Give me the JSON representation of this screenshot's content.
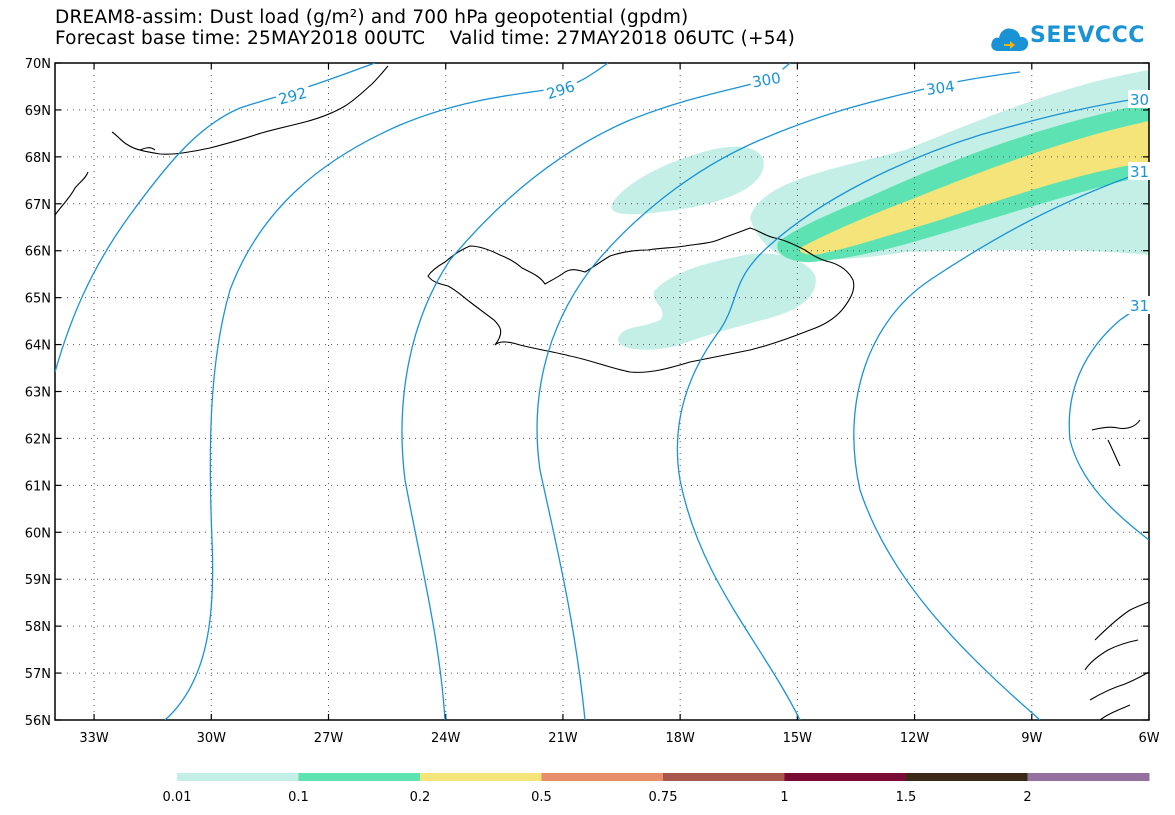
{
  "title": {
    "line1": "DREAM8-assim: Dust load (g/m²) and 700 hPa geopotential (gpdm)",
    "line2": "Forecast base time: 25MAY2018 00UTC    Valid time: 27MAY2018 06UTC (+54)"
  },
  "logo": {
    "text": "SEEVCCC",
    "icon": "cloud-icon"
  },
  "axes": {
    "lat_labels": [
      "70N",
      "69N",
      "68N",
      "67N",
      "66N",
      "65N",
      "64N",
      "63N",
      "62N",
      "61N",
      "60N",
      "59N",
      "58N",
      "57N",
      "56N"
    ],
    "lon_labels": [
      "33W",
      "30W",
      "27W",
      "24W",
      "21W",
      "18W",
      "15W",
      "12W",
      "9W",
      "6W"
    ]
  },
  "contours": {
    "labels": [
      "292",
      "296",
      "300",
      "304",
      "30",
      "31",
      "31"
    ],
    "color": "#1a93d6"
  },
  "colorbar": {
    "levels": [
      "0.01",
      "0.1",
      "0.2",
      "0.5",
      "0.75",
      "1",
      "1.5",
      "2"
    ],
    "colors": [
      "#c3efe6",
      "#5de2b3",
      "#f5e479",
      "#e88e6d",
      "#a8574c",
      "#7a0b33",
      "#3a2a17",
      "#94719e"
    ]
  }
}
